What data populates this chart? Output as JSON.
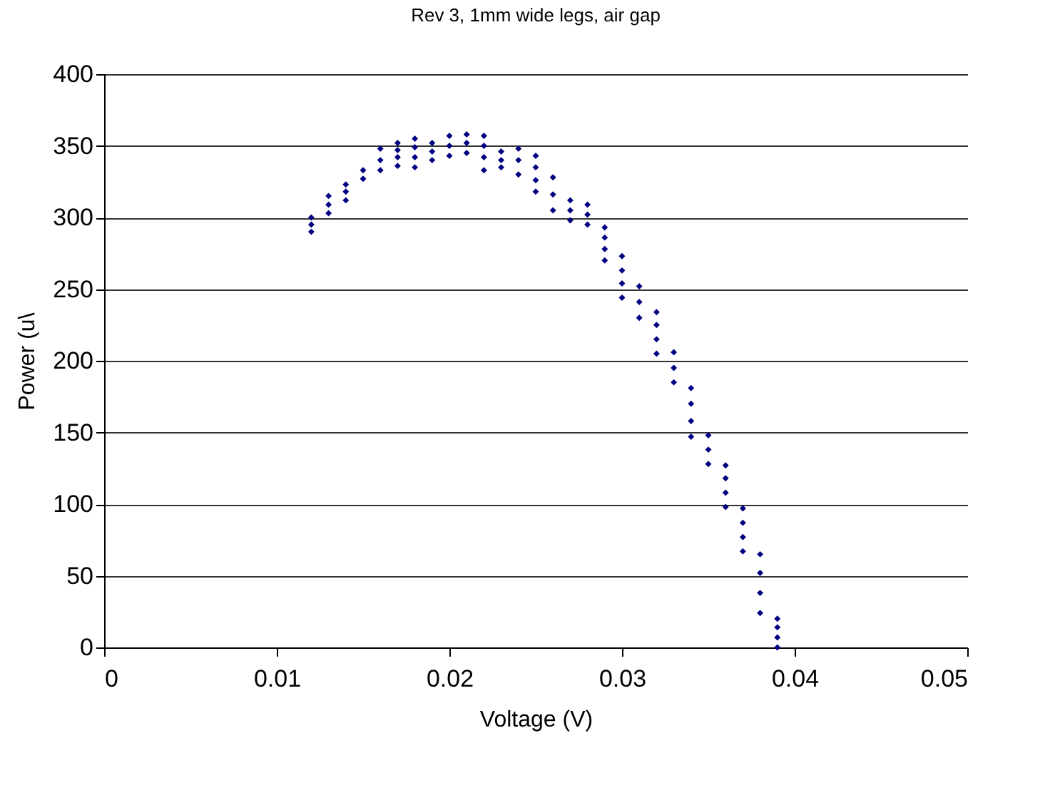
{
  "chart_data": {
    "type": "scatter",
    "title": "Rev 3, 1mm wide legs, air gap",
    "xlabel": "Voltage (V)",
    "ylabel": "Power (u\\",
    "xlim": [
      0,
      0.05
    ],
    "xticks": [
      0,
      0.01,
      0.02,
      0.03,
      0.04,
      0.05
    ],
    "ylim": [
      0,
      400
    ],
    "yticks": [
      0,
      50,
      100,
      150,
      200,
      250,
      300,
      350,
      400
    ],
    "grid": "y",
    "marker": "diamond",
    "series": [
      {
        "color": "#000080",
        "x": [
          0.012,
          0.012,
          0.012,
          0.013,
          0.013,
          0.013,
          0.014,
          0.014,
          0.014,
          0.015,
          0.015,
          0.016,
          0.016,
          0.016,
          0.017,
          0.017,
          0.017,
          0.017,
          0.018,
          0.018,
          0.018,
          0.018,
          0.019,
          0.019,
          0.019,
          0.02,
          0.02,
          0.02,
          0.021,
          0.021,
          0.021,
          0.022,
          0.022,
          0.022,
          0.022,
          0.023,
          0.023,
          0.023,
          0.024,
          0.024,
          0.024,
          0.025,
          0.025,
          0.025,
          0.025,
          0.026,
          0.026,
          0.026,
          0.027,
          0.027,
          0.027,
          0.028,
          0.028,
          0.028,
          0.029,
          0.029,
          0.029,
          0.029,
          0.03,
          0.03,
          0.03,
          0.03,
          0.031,
          0.031,
          0.031,
          0.032,
          0.032,
          0.032,
          0.032,
          0.033,
          0.033,
          0.033,
          0.034,
          0.034,
          0.034,
          0.034,
          0.035,
          0.035,
          0.035,
          0.036,
          0.036,
          0.036,
          0.036,
          0.037,
          0.037,
          0.037,
          0.037,
          0.038,
          0.038,
          0.038,
          0.038,
          0.039,
          0.039,
          0.039,
          0.039
        ],
        "values": [
          290,
          295,
          300,
          303,
          309,
          315,
          312,
          318,
          323,
          327,
          333,
          333,
          340,
          348,
          336,
          342,
          347,
          352,
          335,
          342,
          349,
          355,
          340,
          346,
          352,
          343,
          350,
          357,
          345,
          352,
          358,
          333,
          342,
          350,
          357,
          335,
          340,
          346,
          330,
          340,
          348,
          318,
          326,
          335,
          343,
          305,
          316,
          328,
          298,
          305,
          312,
          295,
          302,
          309,
          270,
          278,
          286,
          293,
          244,
          254,
          263,
          273,
          230,
          241,
          252,
          205,
          215,
          225,
          234,
          185,
          195,
          206,
          147,
          158,
          170,
          181,
          128,
          138,
          148,
          98,
          108,
          118,
          127,
          67,
          77,
          87,
          97,
          24,
          38,
          52,
          65,
          0,
          7,
          14,
          20
        ]
      }
    ]
  }
}
